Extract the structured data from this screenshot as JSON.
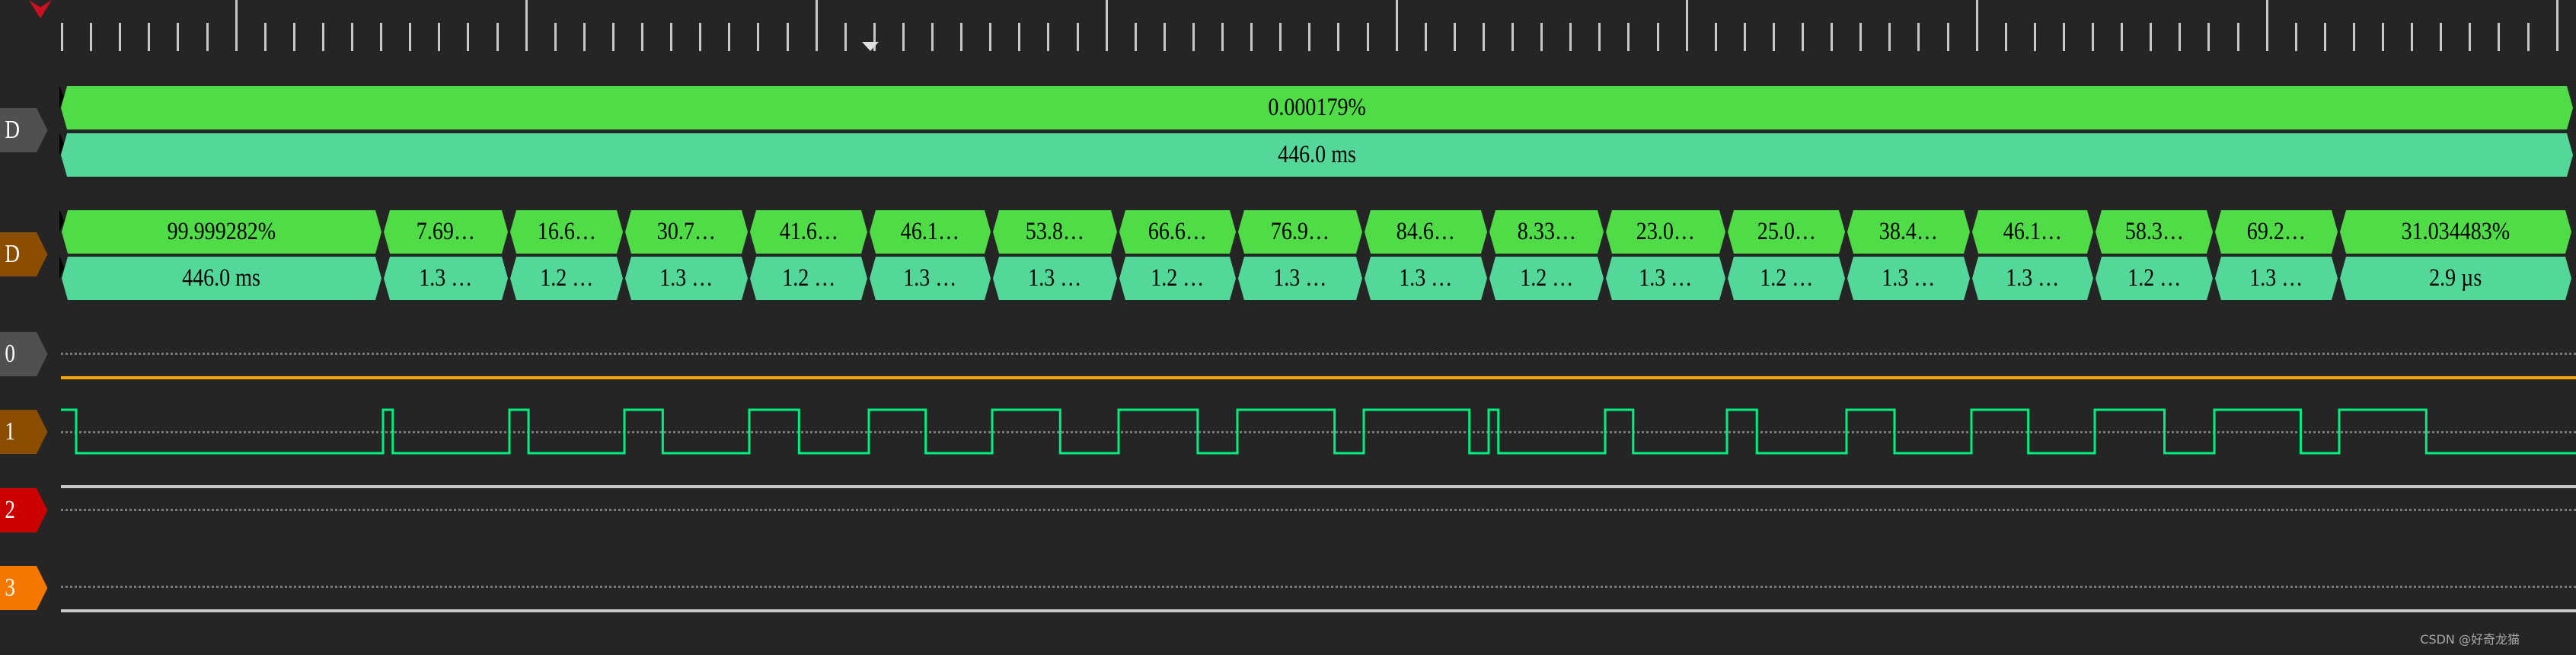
{
  "colors": {
    "duty_bar": "#4fdc46",
    "period_bar": "#53d89a",
    "signal": "#00f080",
    "ch0_label": "#505050",
    "ch1_label": "#8b4d00",
    "ch2_label": "#cc0000",
    "ch3_label": "#f47700",
    "ch_d1_label": "#505050",
    "ch_d2_label": "#8b4d00",
    "orange_line": "#ffa500",
    "trigger_marker": "#d01020"
  },
  "channels": {
    "decoder1": {
      "label": "D",
      "duty": "0.000179%",
      "period": "446.0 ms"
    },
    "decoder2": {
      "label": "D",
      "segments": [
        {
          "duty": "99.999282%",
          "period": "446.0 ms",
          "duty_value": 99.999282
        },
        {
          "duty": "7.69…",
          "period": "1.3 …",
          "duty_value": 7.69
        },
        {
          "duty": "16.6…",
          "period": "1.2 …",
          "duty_value": 16.6
        },
        {
          "duty": "30.7…",
          "period": "1.3 …",
          "duty_value": 30.7
        },
        {
          "duty": "41.6…",
          "period": "1.2 …",
          "duty_value": 41.6
        },
        {
          "duty": "46.1…",
          "period": "1.3 …",
          "duty_value": 46.1
        },
        {
          "duty": "53.8…",
          "period": "1.3 …",
          "duty_value": 53.8
        },
        {
          "duty": "66.6…",
          "period": "1.2 …",
          "duty_value": 66.6
        },
        {
          "duty": "76.9…",
          "period": "1.3 …",
          "duty_value": 76.9
        },
        {
          "duty": "84.6…",
          "period": "1.3 …",
          "duty_value": 84.6
        },
        {
          "duty": "8.33…",
          "period": "1.2 …",
          "duty_value": 8.33
        },
        {
          "duty": "23.0…",
          "period": "1.3 …",
          "duty_value": 23.0
        },
        {
          "duty": "25.0…",
          "period": "1.2 …",
          "duty_value": 25.0
        },
        {
          "duty": "38.4…",
          "period": "1.3 …",
          "duty_value": 38.4
        },
        {
          "duty": "46.1…",
          "period": "1.3 …",
          "duty_value": 46.1
        },
        {
          "duty": "58.3…",
          "period": "1.2 …",
          "duty_value": 58.3
        },
        {
          "duty": "69.2…",
          "period": "1.3 …",
          "duty_value": 69.2
        },
        {
          "duty": "31.034483%",
          "period": "2.9 µs",
          "duty_value": 31.034483
        }
      ]
    },
    "digital": [
      {
        "label": "0"
      },
      {
        "label": "1"
      },
      {
        "label": "2"
      },
      {
        "label": "3"
      }
    ]
  },
  "icons": {
    "trigger_marker": "red-down-triangle",
    "cursor_marker": "white-down-triangle"
  },
  "watermark": "CSDN @好奇龙猫"
}
